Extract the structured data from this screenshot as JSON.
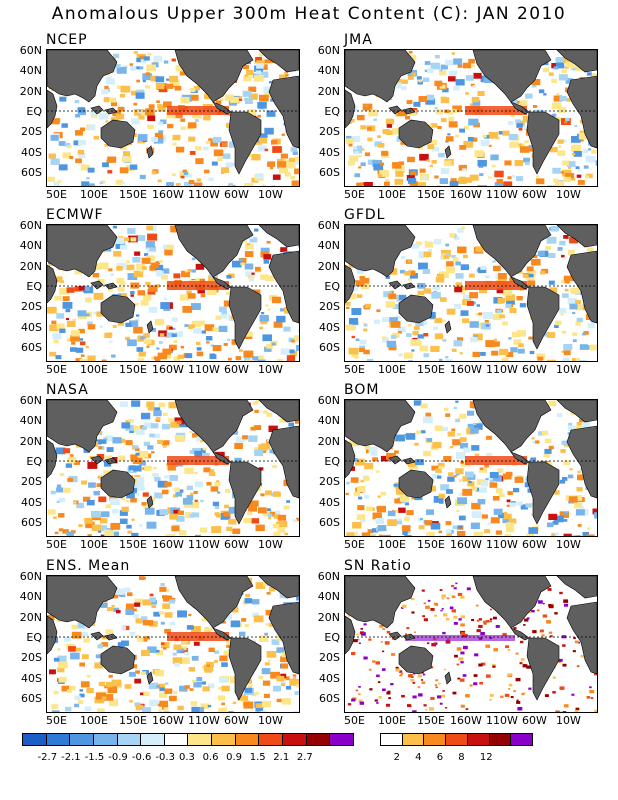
{
  "title": "Anomalous Upper 300m Heat Content (C): JAN 2010",
  "lat_labels": [
    "60N",
    "40N",
    "20N",
    "EQ",
    "20S",
    "40S",
    "60S"
  ],
  "lon_labels": [
    "50E",
    "100E",
    "150E",
    "160W",
    "110W",
    "60W",
    "10W"
  ],
  "panels": [
    {
      "name": "NCEP"
    },
    {
      "name": "JMA"
    },
    {
      "name": "ECMWF"
    },
    {
      "name": "GFDL"
    },
    {
      "name": "NASA"
    },
    {
      "name": "BOM"
    },
    {
      "name": "ENS. Mean"
    },
    {
      "name": "SN Ratio"
    }
  ],
  "colorbar_anomaly": {
    "colors": [
      "#1a5fc8",
      "#2f7ad6",
      "#4f96e0",
      "#78b4ea",
      "#a6d4f4",
      "#d4eefc",
      "#ffffff",
      "#fde68a",
      "#fbbf4a",
      "#f8891f",
      "#f04a16",
      "#c81010",
      "#960000",
      "#8a00c8"
    ],
    "labels": [
      "-2.7",
      "-2.1",
      "-1.5",
      "-0.9",
      "-0.6",
      "-0.3",
      "0.3",
      "0.6",
      "0.9",
      "1.5",
      "2.1",
      "2.7"
    ]
  },
  "colorbar_snratio": {
    "colors": [
      "#ffffff",
      "#fbbf4a",
      "#f8891f",
      "#f04a16",
      "#c81010",
      "#960000",
      "#8a00c8"
    ],
    "labels": [
      "2",
      "4",
      "6",
      "8",
      "12"
    ]
  },
  "chart_data": {
    "type": "heatmap",
    "title": "Anomalous Upper 300m Heat Content (C): JAN 2010",
    "xlabel": "",
    "ylabel": "",
    "x_ticks": [
      "50E",
      "100E",
      "150E",
      "160W",
      "110W",
      "60W",
      "10W"
    ],
    "y_ticks": [
      "60N",
      "40N",
      "20N",
      "EQ",
      "20S",
      "40S",
      "60S"
    ],
    "panels": [
      "NCEP",
      "JMA",
      "ECMWF",
      "GFDL",
      "NASA",
      "BOM",
      "ENS. Mean",
      "SN Ratio"
    ],
    "anomaly_levels": [
      -2.7,
      -2.1,
      -1.5,
      -0.9,
      -0.6,
      -0.3,
      0.3,
      0.6,
      0.9,
      1.5,
      2.1,
      2.7
    ],
    "snratio_levels": [
      2,
      4,
      6,
      8,
      12
    ],
    "dashed_line": "EQ"
  }
}
